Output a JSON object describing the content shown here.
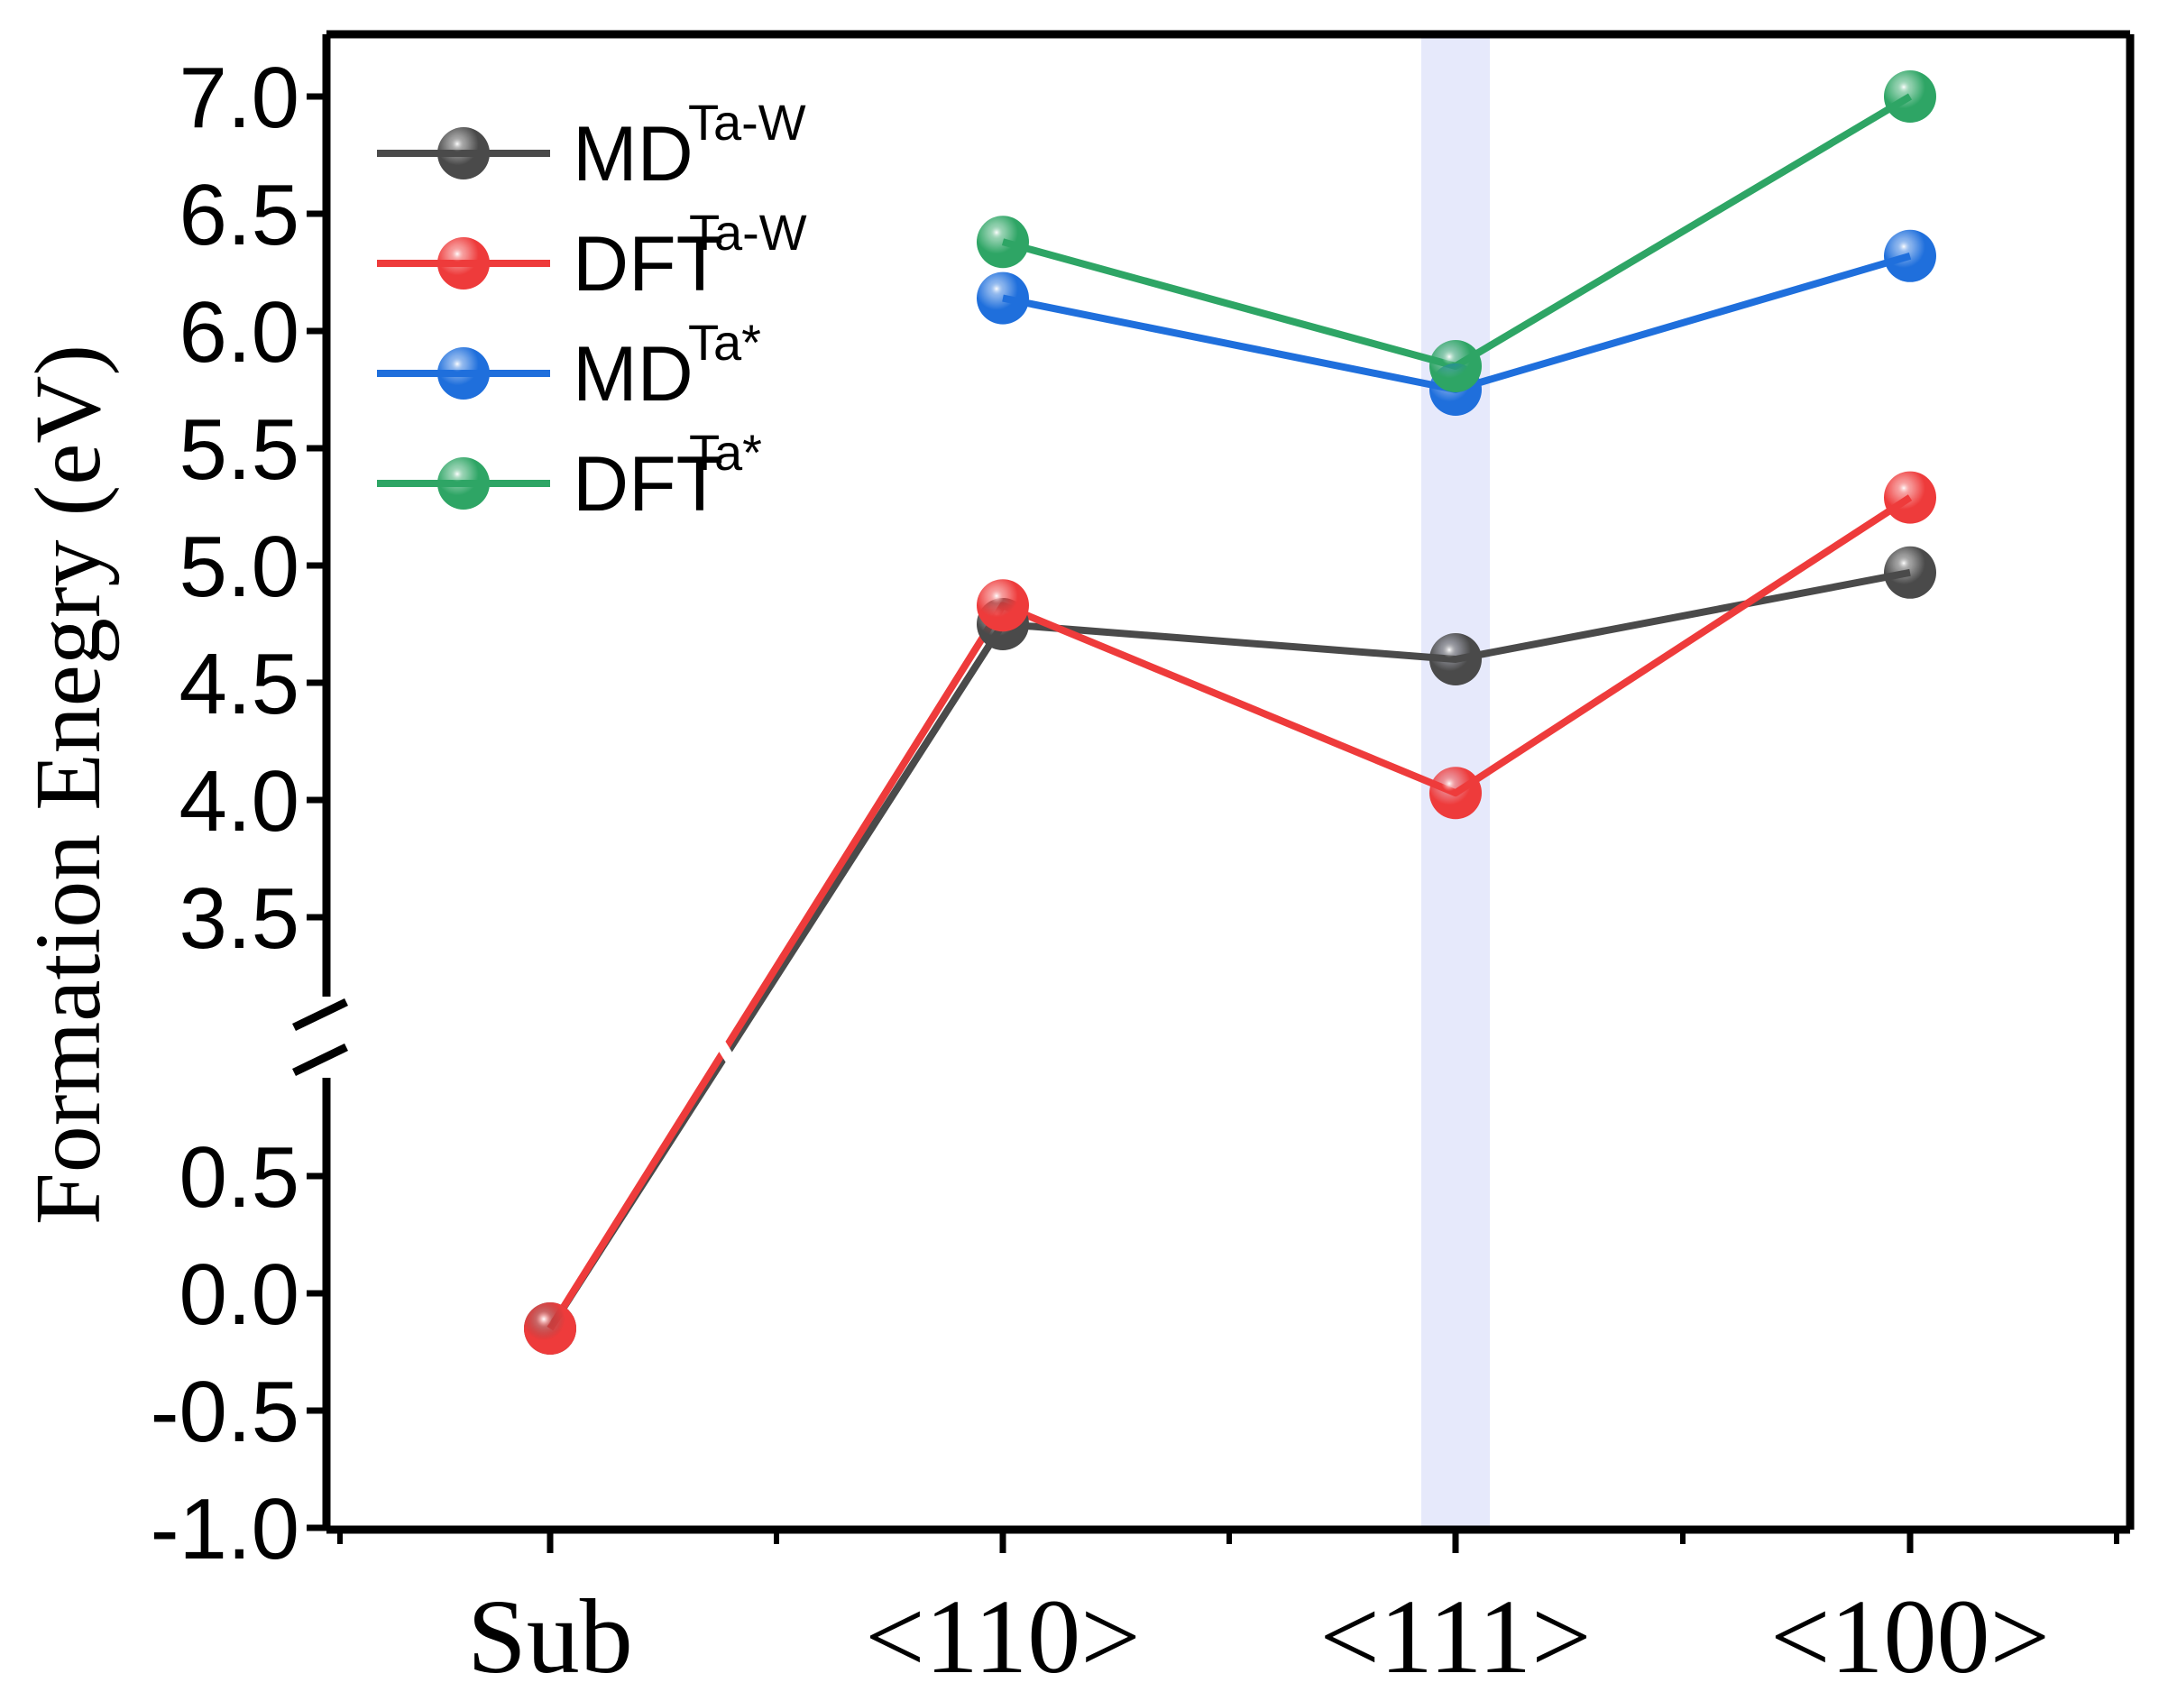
{
  "chart_data": {
    "type": "line",
    "categories": [
      "Sub",
      "<110>",
      "<111>",
      "<100>"
    ],
    "ylabel": "Formation Enegry (eV)",
    "xlabel": "",
    "ylim": [
      -1.0,
      7.0
    ],
    "axis_break": [
      1.0,
      3.0
    ],
    "yticks_lower": [
      "0.5",
      "0.0",
      "-0.5",
      "-1.0"
    ],
    "yticks_upper": [
      "7.0",
      "6.5",
      "6.0",
      "5.5",
      "5.0",
      "4.5",
      "4.0",
      "3.5"
    ],
    "highlight_category": "<111>",
    "highlight_color": "#e6e9fb",
    "series": [
      {
        "name": "MD",
        "sup": "Ta-W",
        "color": "#4a4a4a",
        "values": [
          -0.15,
          4.75,
          4.6,
          4.97
        ]
      },
      {
        "name": "DFT",
        "sup": "Ta-W",
        "color": "#ee3b3b",
        "values": [
          -0.15,
          4.83,
          4.03,
          5.29
        ]
      },
      {
        "name": "MD",
        "sup": "Ta*",
        "color": "#1f6fdc",
        "values": [
          null,
          6.14,
          5.75,
          6.32
        ]
      },
      {
        "name": "DFT",
        "sup": "Ta*",
        "color": "#2ea565",
        "values": [
          null,
          6.38,
          5.85,
          7.0
        ]
      }
    ]
  }
}
